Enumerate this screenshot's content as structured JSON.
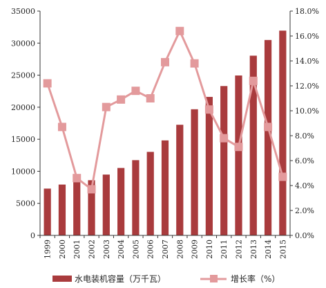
{
  "chart_data": {
    "type": "bar+line",
    "categories": [
      "1999",
      "2000",
      "2001",
      "2002",
      "2003",
      "2004",
      "2005",
      "2006",
      "2007",
      "2008",
      "2009",
      "2010",
      "2011",
      "2012",
      "2013",
      "2014",
      "2015"
    ],
    "series": [
      {
        "name": "水电装机容量（万千瓦）",
        "type": "bar",
        "axis": "left",
        "color": "#A93B3D",
        "values": [
          7300,
          7930,
          8300,
          8610,
          9490,
          10520,
          11740,
          13030,
          14820,
          17260,
          19680,
          21610,
          23300,
          24950,
          28040,
          30490,
          31950
        ]
      },
      {
        "name": "增长率（%）",
        "type": "line",
        "axis": "right",
        "color": "#E39A9C",
        "values": [
          12.2,
          8.7,
          4.6,
          3.7,
          10.3,
          10.9,
          11.6,
          11.0,
          13.9,
          16.4,
          13.8,
          10.1,
          7.8,
          7.1,
          12.4,
          8.7,
          4.7
        ]
      }
    ],
    "left_axis": {
      "ylim": [
        0,
        35000
      ],
      "ticks": [
        "0",
        "5000",
        "10000",
        "15000",
        "20000",
        "25000",
        "30000",
        "35000"
      ]
    },
    "right_axis": {
      "ylim": [
        0,
        18
      ],
      "ticks": [
        "0.0%",
        "2.0%",
        "4.0%",
        "6.0%",
        "8.0%",
        "10.0%",
        "12.0%",
        "14.0%",
        "16.0%",
        "18.0%"
      ]
    },
    "grid": false,
    "legend_position": "bottom"
  }
}
